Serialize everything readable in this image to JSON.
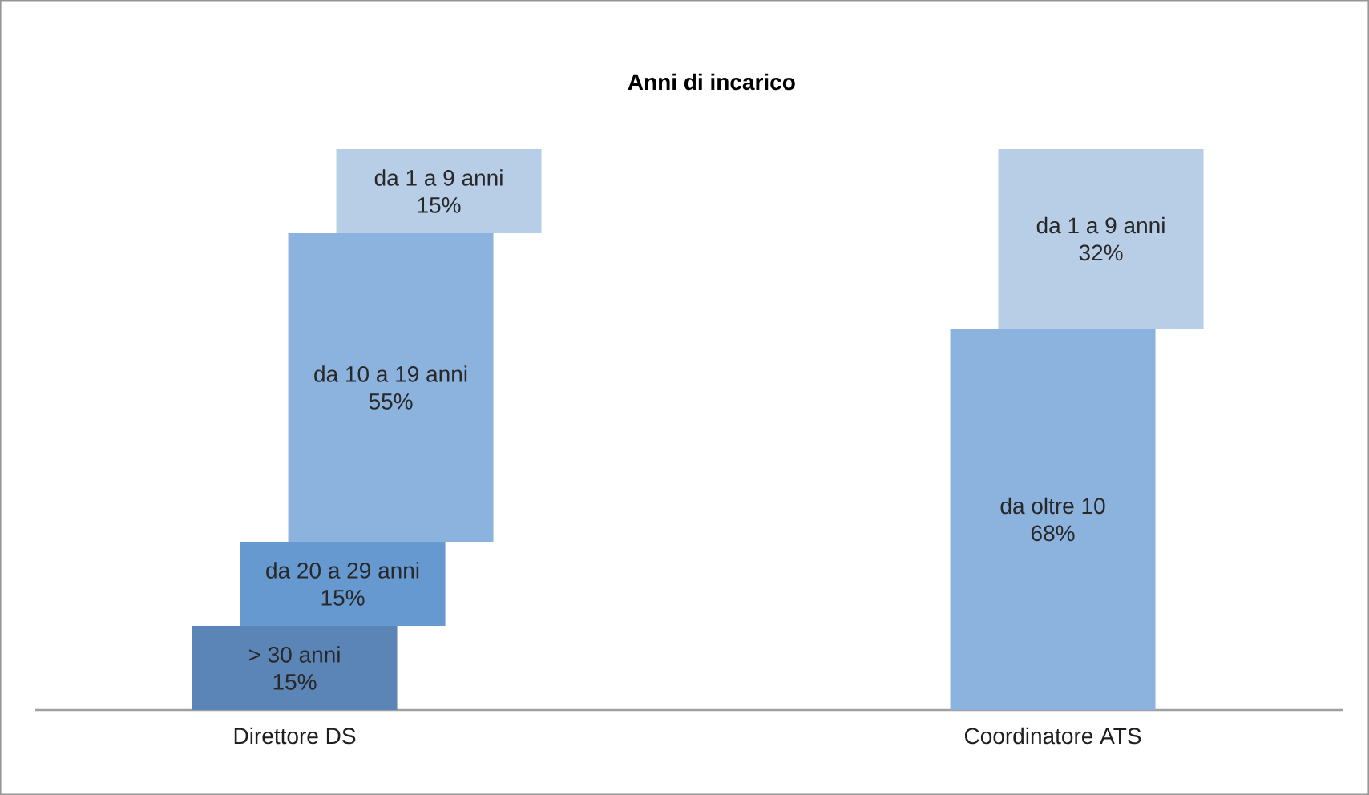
{
  "chart_data": {
    "type": "bar",
    "stacked": true,
    "title": "Anni di incarico",
    "categories": [
      "Direttore DS",
      "Coordinatore ATS"
    ],
    "series": [
      {
        "name": "> 30 anni",
        "color": "#5b85b6",
        "values": [
          15,
          null
        ],
        "value_labels": [
          "15%",
          null
        ]
      },
      {
        "name": "da oltre 10",
        "color": "#8cb3de",
        "values": [
          null,
          68
        ],
        "value_labels": [
          null,
          "68%"
        ]
      },
      {
        "name": "da 20 a 29 anni",
        "color": "#6699d0",
        "values": [
          15,
          null
        ],
        "value_labels": [
          "15%",
          null
        ]
      },
      {
        "name": "da 10 a 19 anni",
        "color": "#8cb3de",
        "values": [
          55,
          null
        ],
        "value_labels": [
          "55%",
          null
        ]
      },
      {
        "name": "da 1 a 9 anni",
        "color": "#b8cde6",
        "values": [
          15,
          32
        ],
        "value_labels": [
          "15%",
          "32%"
        ]
      }
    ]
  }
}
